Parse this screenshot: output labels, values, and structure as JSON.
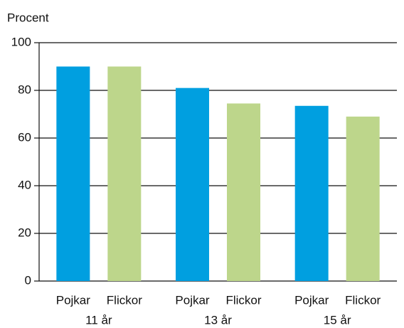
{
  "chart_data": {
    "type": "bar",
    "y_axis_label": "Procent",
    "categories": [
      "11 år",
      "13 år",
      "15 år"
    ],
    "series": [
      {
        "name": "Pojkar",
        "color": "#009fe0",
        "values": [
          90,
          81,
          73.5
        ]
      },
      {
        "name": "Flickor",
        "color": "#bdd68b",
        "values": [
          90,
          74.5,
          69
        ]
      }
    ],
    "ylim": [
      0,
      100
    ],
    "yticks": [
      0,
      20,
      40,
      60,
      80,
      100
    ],
    "grid": true
  }
}
